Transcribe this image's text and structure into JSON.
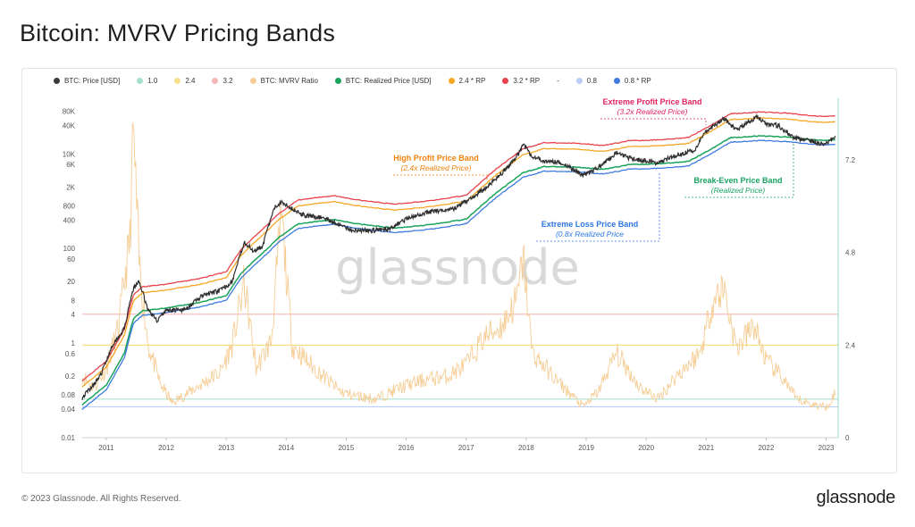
{
  "page": {
    "title": "Bitcoin: MVRV Pricing Bands",
    "copyright": "© 2023 Glassnode. All Rights Reserved.",
    "logo": "glassnode",
    "watermark": "glassnode"
  },
  "legend": [
    {
      "label": "BTC: Price [USD]",
      "color": "#3a3a3a"
    },
    {
      "label": "1.0",
      "color": "#a8e0cf"
    },
    {
      "label": "2.4",
      "color": "#f7e08a"
    },
    {
      "label": "3.2",
      "color": "#f4b7b7"
    },
    {
      "label": "BTC: MVRV Ratio",
      "color": "#f6cd95"
    },
    {
      "label": "BTC: Realized Price [USD]",
      "color": "#1aa35b"
    },
    {
      "label": "2.4 * RP",
      "color": "#f5a623"
    },
    {
      "label": "3.2 * RP",
      "color": "#e8414b"
    },
    {
      "label": "-",
      "color": ""
    },
    {
      "label": "0.8",
      "color": "#b9cdf5"
    },
    {
      "label": "0.8 * RP",
      "color": "#3f7ae0"
    }
  ],
  "annotations": [
    {
      "title": "Extreme Profit Price Band",
      "subtitle": "(3.2x Realized Price)",
      "color": "#e0245e"
    },
    {
      "title": "High Profit Price Band",
      "subtitle": "(2.4x Realized Price)",
      "color": "#f2820a"
    },
    {
      "title": "Break-Even Price Band",
      "subtitle": "(Realized Price)",
      "color": "#19a462"
    },
    {
      "title": "Extreme Loss Price Band",
      "subtitle": "(0.8x Realized Price",
      "color": "#2b78e4"
    }
  ],
  "chart_data": {
    "type": "line",
    "title": "Bitcoin: MVRV Pricing Bands",
    "x_ticks": [
      "2011",
      "2012",
      "2013",
      "2014",
      "2015",
      "2016",
      "2017",
      "2018",
      "2019",
      "2020",
      "2021",
      "2022",
      "2023"
    ],
    "y_left_ticks": [
      "80K",
      "40K",
      "10K",
      "6K",
      "2K",
      "800",
      "400",
      "100",
      "60",
      "20",
      "8",
      "4",
      "1",
      "0.6",
      "0.2",
      "0.08",
      "0.04",
      "0.01"
    ],
    "y_left_scale": "log",
    "y_left_range": [
      0.01,
      150000
    ],
    "y_right_ticks": [
      "7.2",
      "4.8",
      "2.4",
      "0"
    ],
    "y_right_range": [
      0,
      8.8
    ],
    "x_range": [
      2010.6,
      2023.2
    ],
    "horizontal_levels": [
      {
        "name": "1.0",
        "value": 1.0,
        "color": "#a8e0cf"
      },
      {
        "name": "2.4",
        "value": 2.4,
        "color": "#f7e08a"
      },
      {
        "name": "3.2",
        "value": 3.2,
        "color": "#f4b7b7"
      },
      {
        "name": "0.8",
        "value": 0.8,
        "color": "#b9cdf5"
      }
    ],
    "realized_price": {
      "x": [
        2010.6,
        2011.0,
        2011.3,
        2011.45,
        2011.6,
        2012.0,
        2012.5,
        2013.0,
        2013.25,
        2013.5,
        2013.9,
        2014.2,
        2014.8,
        2015.2,
        2015.8,
        2016.5,
        2017.0,
        2017.5,
        2017.95,
        2018.3,
        2018.9,
        2019.3,
        2019.7,
        2020.2,
        2020.7,
        2021.1,
        2021.4,
        2021.9,
        2022.4,
        2022.8,
        2023.15
      ],
      "y": [
        0.05,
        0.13,
        0.6,
        3.2,
        4.8,
        5.5,
        7,
        10,
        30,
        60,
        180,
        330,
        410,
        330,
        270,
        330,
        420,
        1500,
        4000,
        5400,
        5200,
        4700,
        5900,
        6200,
        6900,
        13000,
        22000,
        24000,
        22500,
        19800,
        19500
      ]
    },
    "mvrv_ratio": {
      "x": [
        2010.6,
        2010.8,
        2011.0,
        2011.2,
        2011.4,
        2011.45,
        2011.55,
        2011.7,
        2011.9,
        2012.1,
        2012.5,
        2012.9,
        2013.1,
        2013.3,
        2013.5,
        2013.75,
        2013.92,
        2014.1,
        2014.4,
        2014.9,
        2015.1,
        2015.5,
        2015.9,
        2016.3,
        2016.7,
        2017.0,
        2017.3,
        2017.6,
        2017.85,
        2017.95,
        2018.1,
        2018.5,
        2018.95,
        2019.2,
        2019.5,
        2019.9,
        2020.2,
        2020.5,
        2020.9,
        2021.1,
        2021.3,
        2021.5,
        2021.8,
        2022.0,
        2022.3,
        2022.5,
        2022.8,
        2023.0,
        2023.15
      ],
      "y": [
        1.6,
        1.3,
        1.8,
        2.8,
        5.2,
        8.0,
        4.5,
        2.4,
        1.4,
        0.9,
        1.3,
        1.7,
        2.4,
        4.0,
        1.8,
        2.5,
        5.8,
        2.4,
        1.9,
        1.2,
        1.1,
        1.0,
        1.3,
        1.5,
        1.6,
        1.9,
        2.6,
        2.9,
        3.6,
        4.7,
        2.2,
        1.5,
        0.8,
        1.2,
        2.2,
        1.3,
        1.0,
        1.6,
        2.2,
        3.5,
        3.9,
        2.3,
        2.9,
        2.0,
        1.5,
        1.0,
        0.85,
        0.8,
        1.15
      ]
    },
    "btc_price": {
      "x": [
        2010.6,
        2010.9,
        2011.1,
        2011.3,
        2011.45,
        2011.55,
        2011.7,
        2011.85,
        2012.0,
        2012.3,
        2012.6,
        2012.9,
        2013.1,
        2013.3,
        2013.45,
        2013.6,
        2013.8,
        2013.92,
        2014.1,
        2014.3,
        2014.6,
        2014.9,
        2015.05,
        2015.4,
        2015.7,
        2016.0,
        2016.4,
        2016.8,
        2017.0,
        2017.3,
        2017.6,
        2017.85,
        2017.95,
        2018.1,
        2018.3,
        2018.6,
        2018.95,
        2019.2,
        2019.5,
        2019.75,
        2020.0,
        2020.2,
        2020.5,
        2020.8,
        2021.0,
        2021.3,
        2021.5,
        2021.85,
        2022.0,
        2022.2,
        2022.45,
        2022.7,
        2022.9,
        2023.0,
        2023.15
      ],
      "y": [
        0.07,
        0.2,
        0.9,
        2,
        14,
        20,
        5,
        3,
        5,
        5,
        10,
        13,
        20,
        140,
        90,
        110,
        700,
        1000,
        700,
        500,
        450,
        320,
        250,
        240,
        260,
        420,
        600,
        700,
        1000,
        1800,
        4000,
        9000,
        16000,
        9000,
        7000,
        6500,
        3500,
        5000,
        10500,
        8000,
        7200,
        6500,
        9500,
        12000,
        30000,
        55000,
        33000,
        60000,
        43000,
        40000,
        22000,
        19500,
        17000,
        16800,
        23500
      ]
    }
  }
}
